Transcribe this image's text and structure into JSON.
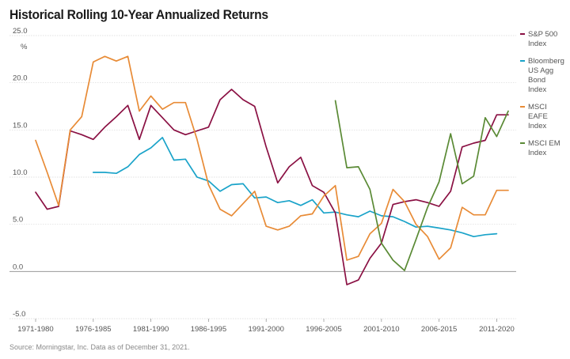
{
  "chart_data": {
    "type": "line",
    "title": "Historical Rolling 10-Year Annualized Returns",
    "ylabel": "%",
    "ylim": [
      -5,
      25
    ],
    "yticks": [
      "25.0",
      "20.0",
      "15.0",
      "10.0",
      "5.0",
      "0.0",
      "-5.0"
    ],
    "ytick_values": [
      25,
      20,
      15,
      10,
      5,
      0,
      -5
    ],
    "x_tick_labels": [
      "1971-1980",
      "1976-1985",
      "1981-1990",
      "1986-1995",
      "1991-2000",
      "1996-2005",
      "2001-2010",
      "2006-2015",
      "2011-2020"
    ],
    "x_tick_start_years": [
      1971,
      1976,
      1981,
      1986,
      1991,
      1996,
      2001,
      2006,
      2011
    ],
    "x_start_years": [
      1971,
      2012
    ],
    "grid": "horizontal",
    "legend_position": "right",
    "series": [
      {
        "name": "S&P 500 Index",
        "legend_lines": [
          "S&P 500",
          "Index"
        ],
        "color": "#8a1043",
        "x": [
          1971,
          1972,
          1973,
          1974,
          1975,
          1976,
          1977,
          1978,
          1979,
          1980,
          1981,
          1982,
          1983,
          1984,
          1985,
          1986,
          1987,
          1988,
          1989,
          1990,
          1991,
          1992,
          1993,
          1994,
          1995,
          1996,
          1997,
          1998,
          1999,
          2000,
          2001,
          2002,
          2003,
          2004,
          2005,
          2006,
          2007,
          2008,
          2009,
          2010,
          2011,
          2012
        ],
        "values": [
          8.4,
          6.6,
          6.9,
          14.9,
          14.5,
          14.0,
          15.3,
          16.4,
          17.6,
          14.0,
          17.6,
          16.3,
          15.0,
          14.5,
          14.9,
          15.3,
          18.2,
          19.3,
          18.2,
          17.5,
          13.2,
          9.4,
          11.1,
          12.1,
          9.1,
          8.4,
          6.2,
          -1.4,
          -0.9,
          1.4,
          3.0,
          7.1,
          7.4,
          7.6,
          7.3,
          6.9,
          8.5,
          13.2,
          13.6,
          13.9,
          16.6,
          16.6
        ]
      },
      {
        "name": "Bloomberg US Agg Bond Index",
        "legend_lines": [
          "Bloomberg",
          "US Agg",
          "Bond",
          "Index"
        ],
        "color": "#1aa3c9",
        "x": [
          1976,
          1977,
          1978,
          1979,
          1980,
          1981,
          1982,
          1983,
          1984,
          1985,
          1986,
          1987,
          1988,
          1989,
          1990,
          1991,
          1992,
          1993,
          1994,
          1995,
          1996,
          1997,
          1998,
          1999,
          2000,
          2001,
          2002,
          2003,
          2004,
          2005,
          2006,
          2007,
          2008,
          2009,
          2010,
          2011
        ],
        "values": [
          10.5,
          10.5,
          10.4,
          11.1,
          12.4,
          13.1,
          14.2,
          11.8,
          11.9,
          10.0,
          9.6,
          8.5,
          9.2,
          9.3,
          7.8,
          7.9,
          7.3,
          7.5,
          7.0,
          7.6,
          6.2,
          6.3,
          6.0,
          5.8,
          6.4,
          5.9,
          5.8,
          5.3,
          4.7,
          4.8,
          4.6,
          4.4,
          4.1,
          3.7,
          3.9,
          4.0
        ]
      },
      {
        "name": "MSCI EAFE Index",
        "legend_lines": [
          "MSCI",
          "EAFE",
          "Index"
        ],
        "color": "#e88b36",
        "x": [
          1971,
          1972,
          1973,
          1974,
          1975,
          1976,
          1977,
          1978,
          1979,
          1980,
          1981,
          1982,
          1983,
          1984,
          1985,
          1986,
          1987,
          1988,
          1989,
          1990,
          1991,
          1992,
          1993,
          1994,
          1995,
          1996,
          1997,
          1998,
          1999,
          2000,
          2001,
          2002,
          2003,
          2004,
          2005,
          2006,
          2007,
          2008,
          2009,
          2010,
          2011,
          2012
        ],
        "values": [
          13.9,
          10.5,
          7.0,
          15.0,
          16.4,
          22.2,
          22.8,
          22.3,
          22.8,
          17.0,
          18.6,
          17.2,
          17.9,
          17.9,
          14.0,
          9.2,
          6.6,
          5.9,
          7.2,
          8.5,
          4.8,
          4.4,
          4.8,
          5.9,
          6.1,
          8.0,
          9.1,
          1.2,
          1.6,
          4.0,
          5.1,
          8.7,
          7.4,
          5.0,
          3.7,
          1.3,
          2.5,
          6.8,
          6.0,
          6.0,
          8.6,
          8.6
        ]
      },
      {
        "name": "MSCI EM Index",
        "legend_lines": [
          "MSCI EM",
          "Index"
        ],
        "color": "#5a8a35",
        "x": [
          1997,
          1998,
          1999,
          2000,
          2001,
          2002,
          2003,
          2004,
          2005,
          2006,
          2007,
          2008,
          2009,
          2010,
          2011,
          2012
        ],
        "values": [
          18.1,
          11.0,
          11.1,
          8.7,
          3.0,
          1.2,
          0.1,
          3.4,
          6.8,
          9.5,
          14.6,
          9.3,
          10.1,
          16.3,
          14.3,
          17.0
        ]
      }
    ]
  },
  "source_note": "Source: Morningstar, Inc. Data as of December 31, 2021."
}
